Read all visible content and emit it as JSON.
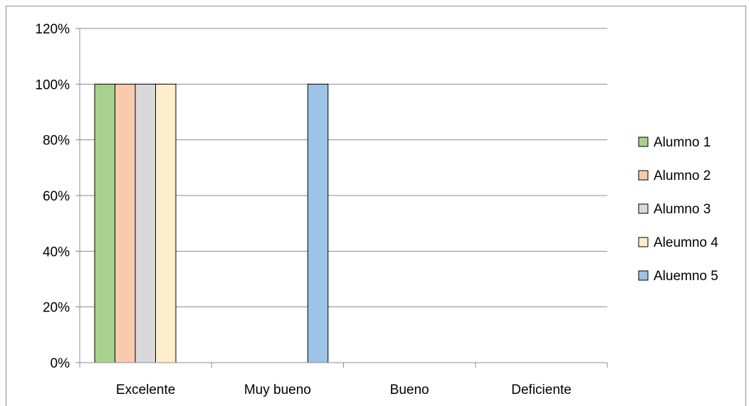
{
  "chart_data": {
    "type": "bar",
    "categories": [
      "Excelente",
      "Muy bueno",
      "Bueno",
      "Deficiente"
    ],
    "series": [
      {
        "name": "Alumno 1",
        "color": "#a9d18e",
        "values": [
          1,
          0,
          0,
          0
        ]
      },
      {
        "name": "Alumno 2",
        "color": "#f8cbad",
        "values": [
          1,
          0,
          0,
          0
        ]
      },
      {
        "name": "Alumno 3",
        "color": "#d9d9d9",
        "values": [
          1,
          0,
          0,
          0
        ]
      },
      {
        "name": "Aleumno 4",
        "color": "#ffeecc",
        "values": [
          1,
          0,
          0,
          0
        ]
      },
      {
        "name": "Aluemno 5",
        "color": "#9dc3e6",
        "values": [
          0,
          1,
          0,
          0
        ]
      }
    ],
    "ylim": [
      0,
      1.2
    ],
    "yticks": [
      "0%",
      "20%",
      "40%",
      "60%",
      "80%",
      "100%",
      "120%"
    ],
    "grid": true,
    "legend": "right",
    "title": "",
    "xlabel": "",
    "ylabel": ""
  }
}
